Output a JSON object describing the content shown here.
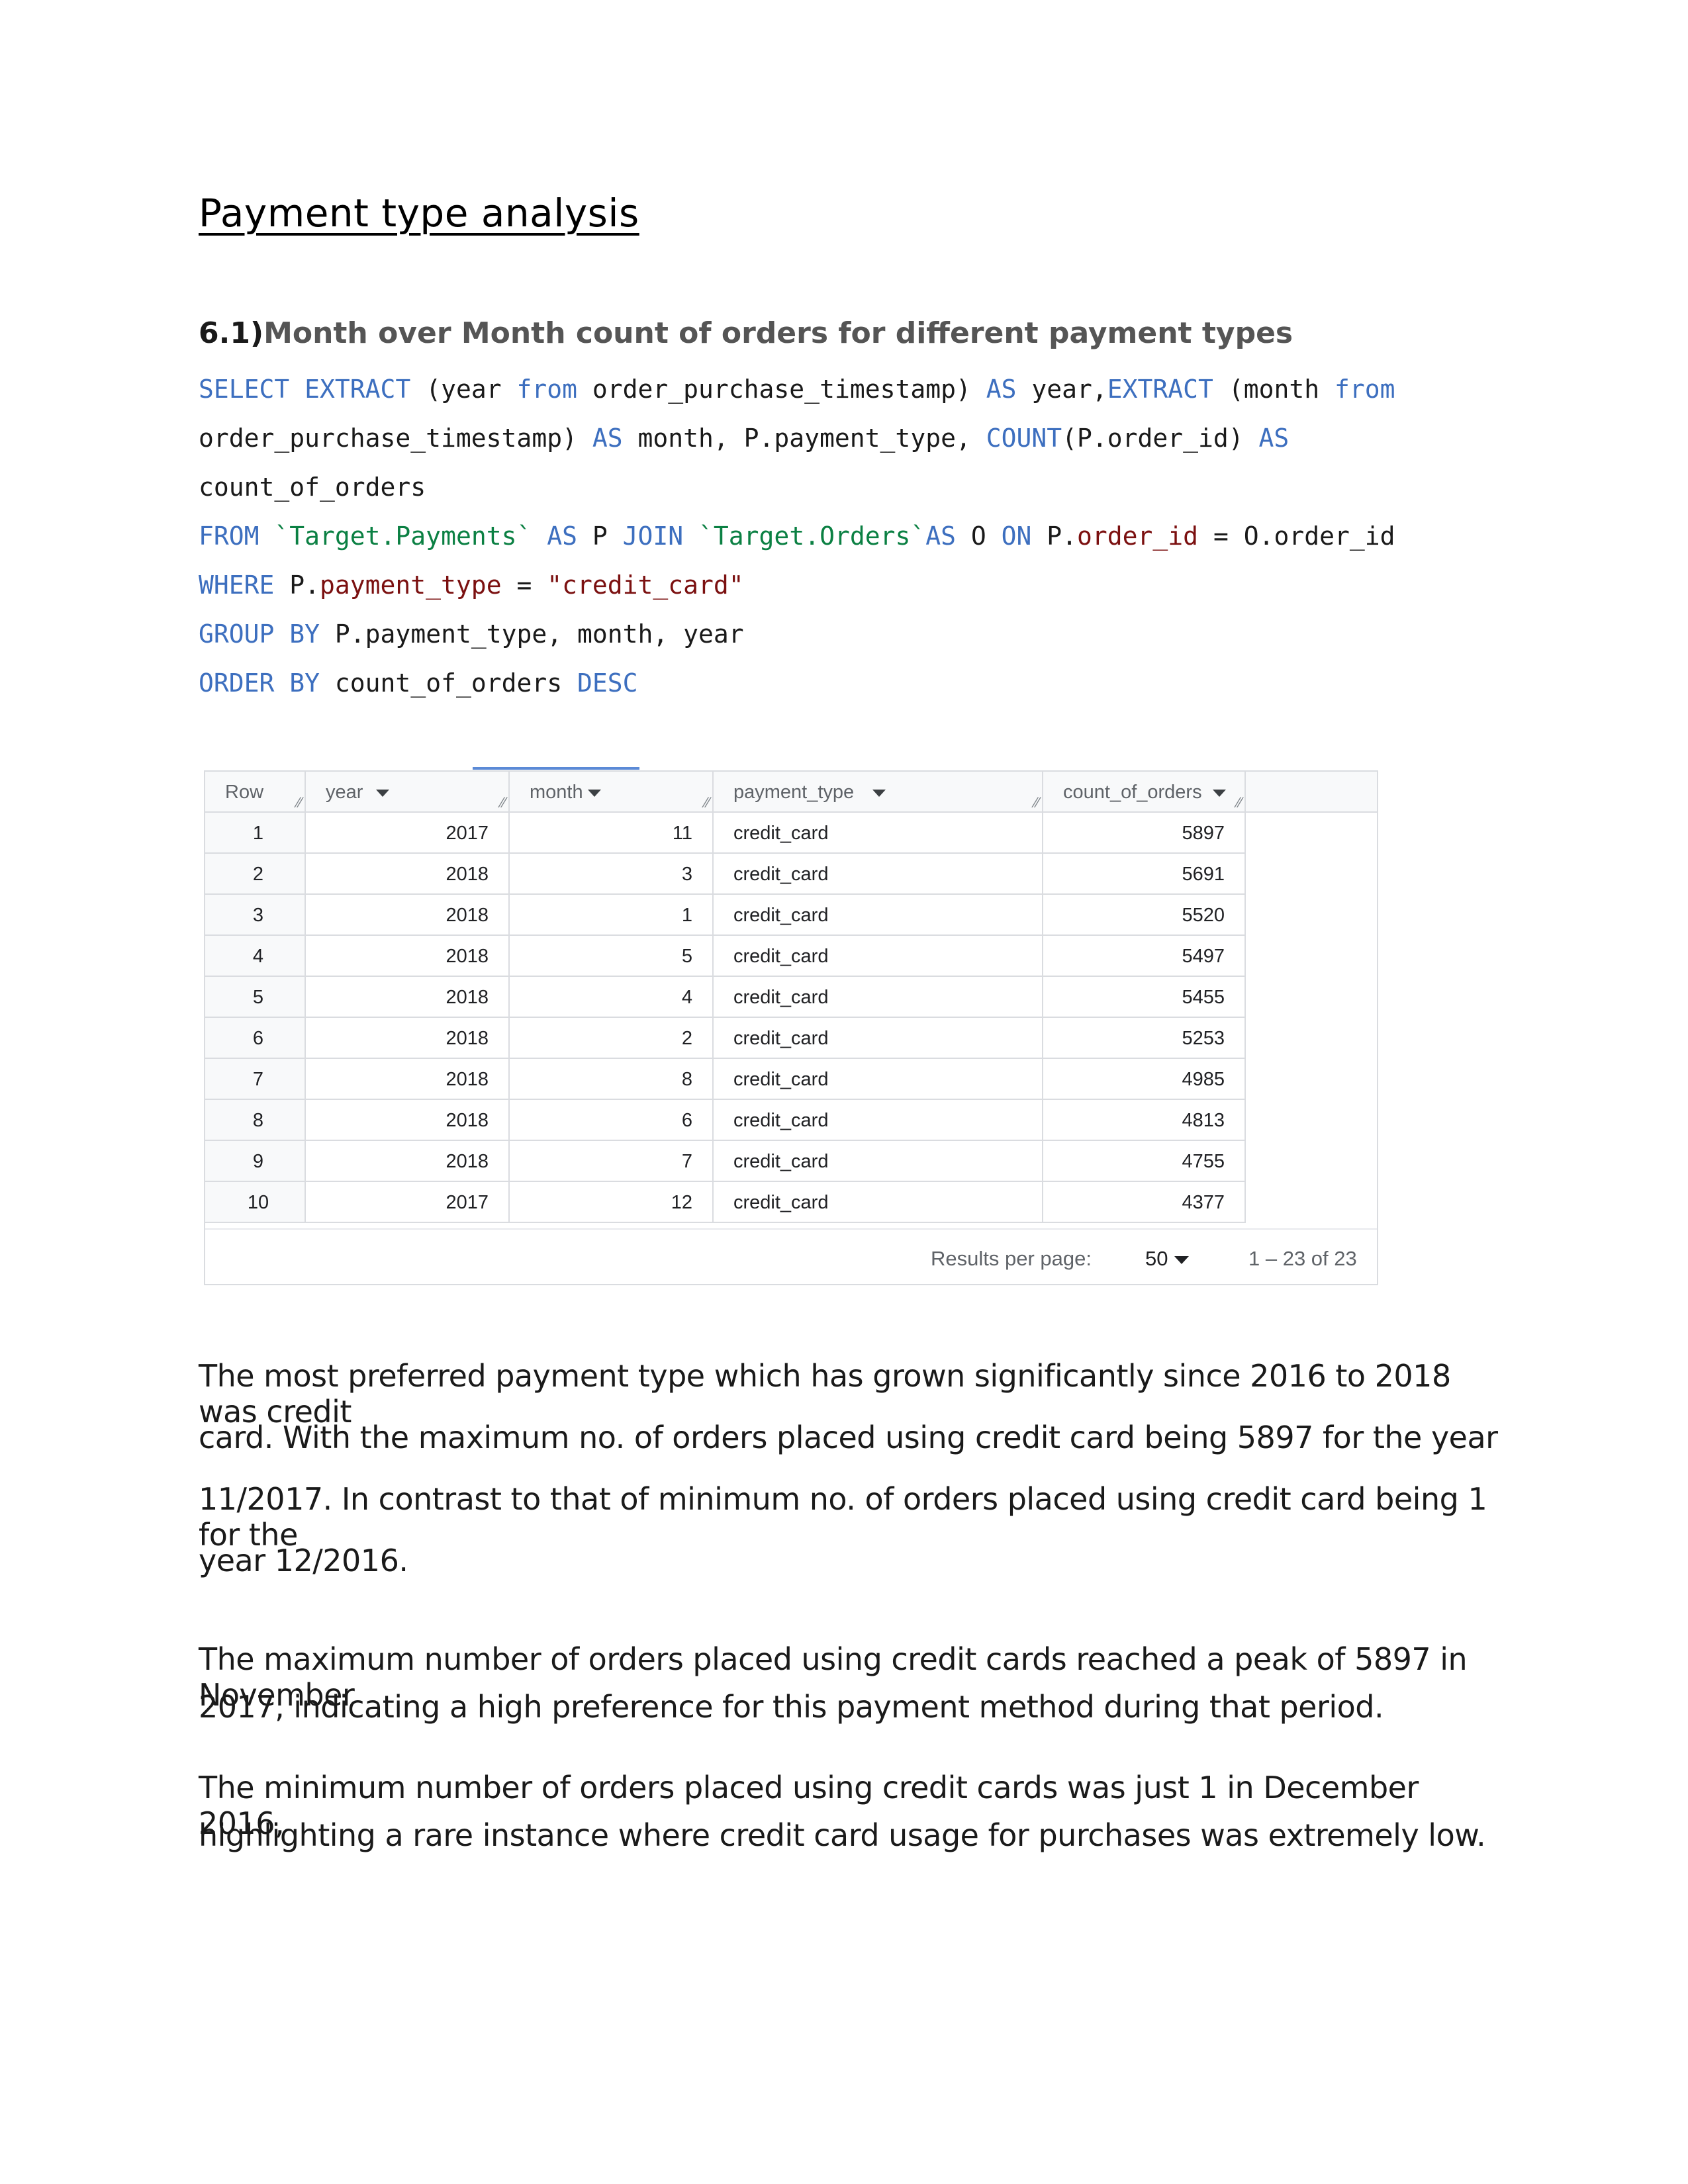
{
  "title": "Payment type analysis",
  "section": {
    "number": "6.1)",
    "heading": "Month over Month count of orders for different payment types"
  },
  "sql": {
    "l1_select": "SELECT",
    "l1_extract1": "EXTRACT",
    "l1_a": " (",
    "l1_year": "year",
    "l1_from1": "from",
    "l1_ts": " order_purchase_timestamp",
    "l1_close": ") ",
    "l1_as1": "AS",
    "l1_year2": " year",
    "l1_comma": ",",
    "l1_extract2": "EXTRACT",
    "l1_b": " (",
    "l1_month": "month",
    "l1_from2": "from",
    "l2_ts": "order_purchase_timestamp",
    "l2_close": ") ",
    "l2_as": "AS",
    "l2_month": " month",
    "l2_c1": ", ",
    "l2_ptype": "P.payment_type",
    "l2_c2": ", ",
    "l2_count": "COUNT",
    "l2_open": "(",
    "l2_oid": "P.order_id",
    "l2_close2": ") ",
    "l2_as2": "AS",
    "l3_alias": "count_of_orders",
    "l4_from": "FROM",
    "l4_payments": "`Target.Payments`",
    "l4_as": "AS",
    "l4_p": " P ",
    "l4_join": "JOIN",
    "l4_orders": "`Target.Orders`",
    "l4_as2": "AS",
    "l4_o": " O ",
    "l4_on": "ON",
    "l4_p2": " P.",
    "l4_oid": "order_id",
    "l4_eq": " = O.order_id",
    "l5_where": "WHERE",
    "l5_p": " P.",
    "l5_ptype": "payment_type",
    "l5_eq": " = ",
    "l5_lit": "\"credit_card\"",
    "l6_group": "GROUP",
    "l6_by": "BY",
    "l6_rest": " P.payment_type, month, year",
    "l7_order": "ORDER",
    "l7_by": "BY",
    "l7_alias": " count_of_orders ",
    "l7_desc": "DESC"
  },
  "table": {
    "headers": {
      "row": "Row",
      "year": "year",
      "month": "month",
      "payment_type": "payment_type",
      "count_of_orders": "count_of_orders"
    },
    "rows": [
      {
        "row": "1",
        "year": "2017",
        "month": "11",
        "payment_type": "credit_card",
        "count": "5897"
      },
      {
        "row": "2",
        "year": "2018",
        "month": "3",
        "payment_type": "credit_card",
        "count": "5691"
      },
      {
        "row": "3",
        "year": "2018",
        "month": "1",
        "payment_type": "credit_card",
        "count": "5520"
      },
      {
        "row": "4",
        "year": "2018",
        "month": "5",
        "payment_type": "credit_card",
        "count": "5497"
      },
      {
        "row": "5",
        "year": "2018",
        "month": "4",
        "payment_type": "credit_card",
        "count": "5455"
      },
      {
        "row": "6",
        "year": "2018",
        "month": "2",
        "payment_type": "credit_card",
        "count": "5253"
      },
      {
        "row": "7",
        "year": "2018",
        "month": "8",
        "payment_type": "credit_card",
        "count": "4985"
      },
      {
        "row": "8",
        "year": "2018",
        "month": "6",
        "payment_type": "credit_card",
        "count": "4813"
      },
      {
        "row": "9",
        "year": "2018",
        "month": "7",
        "payment_type": "credit_card",
        "count": "4755"
      },
      {
        "row": "10",
        "year": "2017",
        "month": "12",
        "payment_type": "credit_card",
        "count": "4377"
      }
    ],
    "footer": {
      "results_label": "Results per page:",
      "per_page": "50",
      "range": "1 – 23 of 23"
    }
  },
  "paragraphs": {
    "p1_l1": "The most preferred payment type which has grown significantly since 2016 to 2018 was credit",
    "p1_l2": "card. With the maximum no. of orders placed using credit card being 5897 for the year",
    "p1_l3": "11/2017. In contrast to that of minimum no. of orders placed using credit card being 1 for the",
    "p1_l4": "year 12/2016.",
    "p2_l1": "The maximum number of orders placed using credit cards reached a peak of 5897 in November",
    "p2_l2": "2017, indicating a high preference for this payment method during that period.",
    "p3_l1": "The minimum number of orders placed using credit cards was just 1 in December 2016,",
    "p3_l2": "highlighting a rare instance where credit card usage for purchases was extremely low."
  }
}
